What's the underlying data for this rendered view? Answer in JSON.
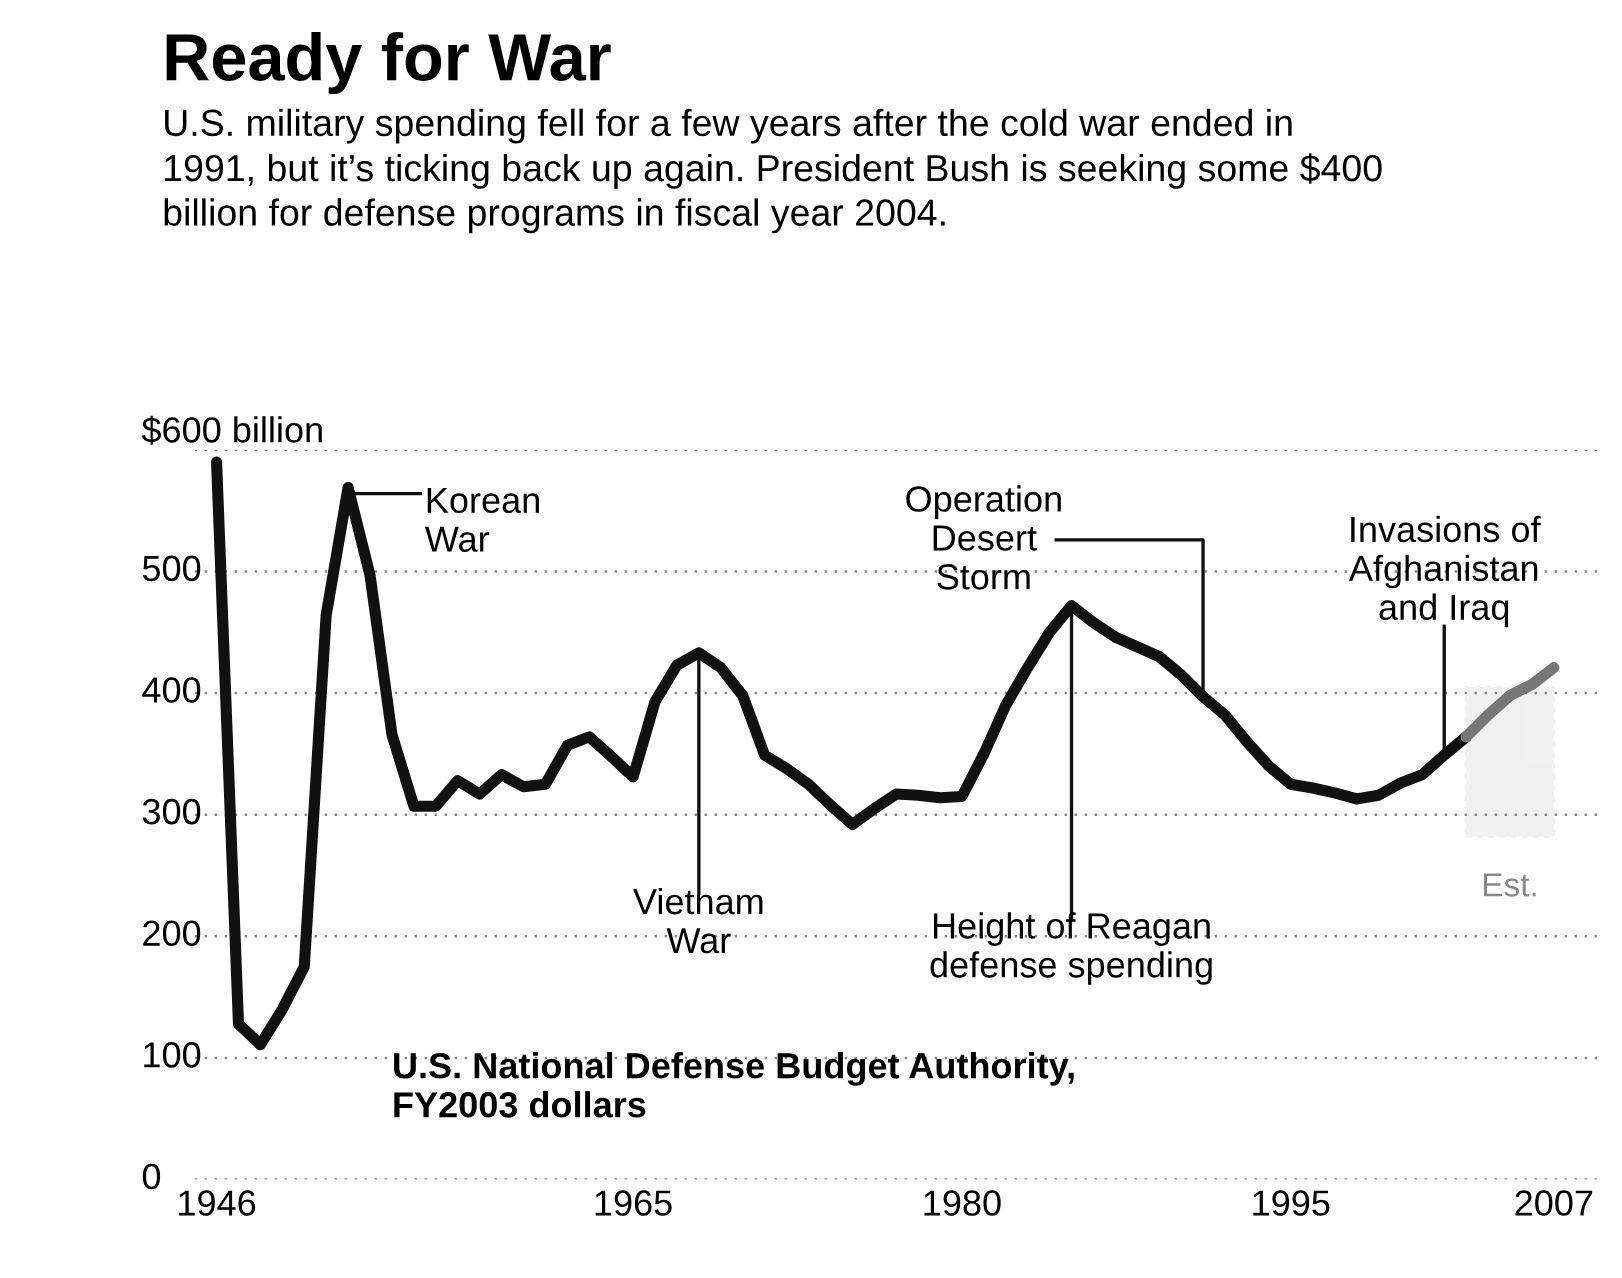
{
  "chart_data": {
    "type": "line",
    "title": "Ready for War",
    "subtitle": "U.S. military spending fell for a few years after the cold war ended in 1991, but it’s ticking back up again. President Bush is seeking some $400 billion for defense programs in fiscal year 2004.",
    "series": [
      {
        "color": "#111111",
        "x": [
          1946,
          1947,
          1948,
          1949,
          1950,
          1951,
          1952,
          1953,
          1954,
          1955,
          1956,
          1957,
          1958,
          1959,
          1960,
          1961,
          1962,
          1963,
          1964,
          1965,
          1966,
          1967,
          1968,
          1969,
          1970,
          1971,
          1972,
          1973,
          1974,
          1975,
          1976,
          1977,
          1978,
          1979,
          1980,
          1981,
          1982,
          1983,
          1984,
          1985,
          1986,
          1987,
          1988,
          1989,
          1990,
          1991,
          1992,
          1993,
          1994,
          1995,
          1996,
          1997,
          1998,
          1999,
          2000,
          2001,
          2002,
          2003
        ],
        "values": [
          590,
          128,
          111,
          140,
          175,
          464,
          569,
          497,
          366,
          307,
          307,
          328,
          317,
          333,
          323,
          325,
          357,
          364,
          348,
          331,
          393,
          423,
          433,
          421,
          398,
          349,
          338,
          325,
          308,
          292,
          305,
          317,
          316,
          314,
          315,
          350,
          390,
          421,
          450,
          472,
          458,
          446,
          438,
          430,
          415,
          397,
          382,
          360,
          340,
          325,
          322,
          318,
          313,
          316,
          326,
          333,
          349,
          364
        ]
      },
      {
        "color": "#777777",
        "x": [
          2003,
          2004,
          2005,
          2006,
          2007
        ],
        "values": [
          364,
          382,
          398,
          407,
          421
        ]
      }
    ],
    "xlim": [
      1945,
      2009
    ],
    "ylim": [
      0,
      600
    ],
    "xticks": [
      1946,
      1965,
      1980,
      1995,
      2007
    ],
    "yticks": [
      0,
      100,
      200,
      300,
      400,
      500,
      {
        "value": 600,
        "label": "$600 billion"
      }
    ],
    "grid": "y",
    "line_style": "solid",
    "bands": [
      {
        "axis": "x",
        "from": 2003,
        "to": 2007,
        "label": "Est.",
        "color": "#888888"
      }
    ],
    "annotations": [
      {
        "text": "Korean War",
        "x": 1952,
        "y": 569
      },
      {
        "text": "Vietnam War",
        "x": 1968,
        "y": 433
      },
      {
        "text": "Operation Desert Storm",
        "x": 1991,
        "y": 397
      },
      {
        "text": "Height of Reagan defense spending",
        "x": 1985,
        "y": 472
      },
      {
        "text": "Invasions of Afghanistan and Iraq",
        "x": 2002,
        "y": 349
      },
      "U.S. National Defense Budget Authority, FY2003 dollars"
    ]
  }
}
